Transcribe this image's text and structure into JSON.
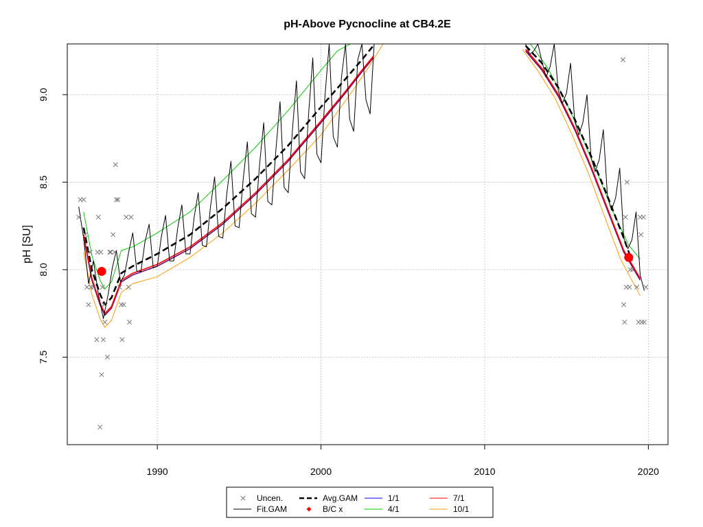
{
  "chart_data": {
    "type": "line",
    "title": "pH-Above Pycnocline at CB4.2E",
    "xlabel": "",
    "ylabel": "pH [SU]",
    "xlim": [
      1984.5,
      2021.2
    ],
    "ylim": [
      7.0,
      9.29
    ],
    "x_ticks": [
      1990,
      2000,
      2010,
      2020
    ],
    "x_tick_labels": [
      "1990",
      "2000",
      "2010",
      "2020"
    ],
    "y_ticks": [
      7.5,
      8.0,
      8.5,
      9.0
    ],
    "y_tick_labels": [
      "7.5",
      "8.0",
      "8.5",
      "9.0"
    ],
    "grid": true,
    "legend_placement": "bottom-center (outside plot)",
    "legend": [
      {
        "label": "Uncen.",
        "kind": "x-marker",
        "color": "#777777"
      },
      {
        "label": "Avg.GAM",
        "kind": "dashed-line",
        "color": "#000000"
      },
      {
        "label": "1/1",
        "kind": "line",
        "color": "#0000ff"
      },
      {
        "label": "7/1",
        "kind": "line",
        "color": "#ff0000"
      },
      {
        "label": "Fit.GAM",
        "kind": "line",
        "color": "#000000"
      },
      {
        "label": "B/C x",
        "kind": "dot",
        "color": "#ff0000"
      },
      {
        "label": "4/1",
        "kind": "line",
        "color": "#00cc00"
      },
      {
        "label": "10/1",
        "kind": "line",
        "color": "#ff9900"
      }
    ],
    "series": [
      {
        "name": "Avg.GAM",
        "style": "dashed",
        "color": "#000000",
        "x": [
          1985.5,
          1986.0,
          1986.5,
          1986.8,
          1987.2,
          1987.8,
          1988.5,
          1990.0,
          1992.0,
          1994.0,
          1996.0,
          1998.0,
          2000.0,
          2001.5,
          2002.5,
          2003.2,
          2012.5,
          2013.5,
          2014.5,
          2015.5,
          2016.5,
          2017.5,
          2018.5,
          2019.0
        ],
        "y": [
          8.24,
          8.0,
          7.86,
          7.8,
          7.84,
          7.98,
          8.02,
          8.09,
          8.2,
          8.35,
          8.52,
          8.71,
          8.93,
          9.09,
          9.2,
          9.28,
          9.28,
          9.18,
          9.04,
          8.86,
          8.65,
          8.42,
          8.18,
          8.05
        ]
      },
      {
        "name": "1/1",
        "color": "#0000ff",
        "x": [
          1985.5,
          1986.0,
          1986.5,
          1986.8,
          1987.2,
          1987.8,
          1988.5,
          1990.0,
          1992.0,
          1994.0,
          1996.0,
          1998.0,
          2000.0,
          2001.5,
          2002.5,
          2003.2,
          2012.5,
          2013.5,
          2014.5,
          2015.5,
          2016.5,
          2017.5,
          2018.5,
          2019.5
        ],
        "y": [
          8.19,
          7.94,
          7.8,
          7.74,
          7.78,
          7.93,
          7.97,
          8.02,
          8.12,
          8.26,
          8.43,
          8.62,
          8.84,
          9.01,
          9.13,
          9.21,
          9.25,
          9.14,
          8.99,
          8.8,
          8.58,
          8.34,
          8.1,
          7.94
        ]
      },
      {
        "name": "7/1",
        "color": "#ff0000",
        "x": [
          1985.5,
          1986.0,
          1986.5,
          1986.8,
          1987.2,
          1987.8,
          1988.5,
          1990.0,
          1992.0,
          1994.0,
          1996.0,
          1998.0,
          2000.0,
          2001.5,
          2002.5,
          2003.2,
          2012.5,
          2013.5,
          2014.5,
          2015.5,
          2016.5,
          2017.5,
          2018.5,
          2019.5
        ],
        "y": [
          8.2,
          7.95,
          7.81,
          7.75,
          7.79,
          7.94,
          7.98,
          8.03,
          8.13,
          8.27,
          8.44,
          8.63,
          8.85,
          9.02,
          9.14,
          9.22,
          9.26,
          9.15,
          9.0,
          8.81,
          8.59,
          8.35,
          8.11,
          7.95
        ]
      },
      {
        "name": "4/1",
        "color": "#00cc00",
        "x": [
          1985.5,
          1986.0,
          1986.5,
          1986.8,
          1987.2,
          1987.8,
          1988.5,
          1990.0,
          1992.0,
          1994.0,
          1996.0,
          1998.0,
          2000.0,
          2001.0,
          2002.0,
          2012.8,
          2013.8,
          2014.8,
          2015.8,
          2016.8,
          2017.8,
          2018.8,
          2019.5
        ],
        "y": [
          8.33,
          8.08,
          7.94,
          7.89,
          7.93,
          8.11,
          8.13,
          8.21,
          8.33,
          8.51,
          8.7,
          8.91,
          9.14,
          9.25,
          9.3,
          9.29,
          9.16,
          8.99,
          8.79,
          8.57,
          8.34,
          8.14,
          8.06
        ]
      },
      {
        "name": "10/1",
        "color": "#ff9900",
        "x": [
          1985.5,
          1986.0,
          1986.5,
          1986.8,
          1987.2,
          1987.8,
          1988.5,
          1990.0,
          1992.0,
          1994.0,
          1996.0,
          1998.0,
          2000.0,
          2002.0,
          2003.0,
          2003.8,
          2012.3,
          2013.3,
          2014.3,
          2015.3,
          2016.3,
          2017.3,
          2018.3,
          2019.5
        ],
        "y": [
          8.1,
          7.86,
          7.72,
          7.67,
          7.71,
          7.87,
          7.92,
          7.96,
          8.07,
          8.21,
          8.38,
          8.57,
          8.77,
          9.03,
          9.17,
          9.29,
          9.26,
          9.13,
          8.98,
          8.78,
          8.56,
          8.31,
          8.06,
          7.85
        ]
      },
      {
        "name": "Fit.GAM",
        "color": "#000000",
        "x": [
          1985.2,
          1985.5,
          1985.8,
          1986.1,
          1986.4,
          1986.7,
          1987.0,
          1987.25,
          1987.5,
          1987.75,
          1988.0,
          1988.25,
          1988.5,
          1988.75,
          1989.0,
          1989.25,
          1989.5,
          1989.75,
          1990.0,
          1990.25,
          1990.5,
          1990.75,
          1991.0,
          1991.25,
          1991.5,
          1991.75,
          1992.0,
          1992.25,
          1992.5,
          1992.75,
          1993.0,
          1993.25,
          1993.5,
          1993.75,
          1994.0,
          1994.25,
          1994.5,
          1994.75,
          1995.0,
          1995.25,
          1995.5,
          1995.75,
          1996.0,
          1996.25,
          1996.5,
          1996.75,
          1997.0,
          1997.25,
          1997.5,
          1997.75,
          1998.0,
          1998.25,
          1998.5,
          1998.75,
          1999.0,
          1999.25,
          1999.5,
          1999.75,
          2000.0,
          2000.25,
          2000.5,
          2000.75,
          2001.0,
          2001.25,
          2001.5,
          2001.75,
          2002.0,
          2002.25,
          2002.5,
          2002.75,
          2003.0,
          2003.25,
          2003.5,
          2012.5,
          2012.75,
          2013.0,
          2013.25,
          2013.5,
          2013.75,
          2014.0,
          2014.25,
          2014.5,
          2014.75,
          2015.0,
          2015.25,
          2015.5,
          2015.75,
          2016.0,
          2016.25,
          2016.5,
          2016.75,
          2017.0,
          2017.25,
          2017.5,
          2017.75,
          2018.0,
          2018.25,
          2018.5,
          2018.75,
          2019.0,
          2019.25,
          2019.5,
          2019.75
        ],
        "y": [
          8.36,
          8.18,
          7.92,
          8.05,
          7.86,
          7.72,
          7.86,
          8.01,
          8.11,
          7.93,
          7.97,
          8.1,
          8.21,
          7.99,
          7.99,
          8.16,
          8.26,
          8.01,
          8.02,
          8.19,
          8.31,
          8.05,
          8.05,
          8.24,
          8.37,
          8.09,
          8.09,
          8.3,
          8.44,
          8.14,
          8.13,
          8.36,
          8.53,
          8.19,
          8.18,
          8.44,
          8.62,
          8.25,
          8.24,
          8.52,
          8.73,
          8.32,
          8.3,
          8.6,
          8.84,
          8.39,
          8.37,
          8.69,
          8.96,
          8.47,
          8.44,
          8.79,
          9.08,
          8.56,
          8.52,
          8.9,
          9.21,
          8.66,
          8.61,
          9.0,
          9.29,
          8.76,
          8.7,
          9.1,
          9.29,
          8.86,
          8.79,
          9.2,
          9.29,
          8.97,
          8.89,
          9.29,
          9.29,
          9.29,
          9.23,
          9.25,
          9.29,
          9.19,
          9.1,
          9.16,
          9.29,
          9.02,
          8.95,
          9.01,
          9.18,
          8.85,
          8.77,
          8.84,
          9.0,
          8.64,
          8.56,
          8.63,
          8.8,
          8.42,
          8.34,
          8.41,
          8.58,
          8.18,
          8.12,
          8.17,
          8.33,
          7.97,
          7.88
        ]
      },
      {
        "name": "Uncen.",
        "kind": "scatter",
        "color": "#777777",
        "x": [
          1985.3,
          1985.5,
          1985.6,
          1985.7,
          1985.8,
          1985.9,
          1986.1,
          1986.3,
          1986.4,
          1986.5,
          1986.6,
          1986.7,
          1986.8,
          1986.95,
          1987.1,
          1987.3,
          1987.45,
          1987.5,
          1987.6,
          1987.7,
          1987.85,
          1987.95,
          1988.1,
          1988.3,
          1988.4,
          1985.2,
          1985.95,
          1986.35,
          1986.55,
          1986.65,
          1987.15,
          1987.4,
          1987.8,
          1988.25,
          1986.75,
          2018.45,
          2018.6,
          2018.7,
          2018.85,
          2019.05,
          2019.3,
          2019.5,
          2019.6,
          2019.7,
          2019.85,
          2018.5,
          2018.55,
          2018.65,
          2018.9,
          2019.55,
          2019.4,
          2019.75
        ],
        "y": [
          8.4,
          8.4,
          8.2,
          7.9,
          7.8,
          8.1,
          7.9,
          7.6,
          8.3,
          7.1,
          7.4,
          7.6,
          7.7,
          7.5,
          8.1,
          8.2,
          8.6,
          8.4,
          8.4,
          7.9,
          7.6,
          7.8,
          8.3,
          7.7,
          8.3,
          8.3,
          7.9,
          8.1,
          8.1,
          7.9,
          8.1,
          8.1,
          7.8,
          7.9,
          7.8,
          9.2,
          8.3,
          8.5,
          7.9,
          8.0,
          7.9,
          8.3,
          7.7,
          8.3,
          7.9,
          7.8,
          7.7,
          7.9,
          8.0,
          8.2,
          7.7,
          7.7
        ]
      },
      {
        "name": "B/C x",
        "kind": "points",
        "color": "#ff0000",
        "x": [
          1986.6,
          2018.8
        ],
        "y": [
          7.99,
          8.07
        ]
      }
    ]
  }
}
